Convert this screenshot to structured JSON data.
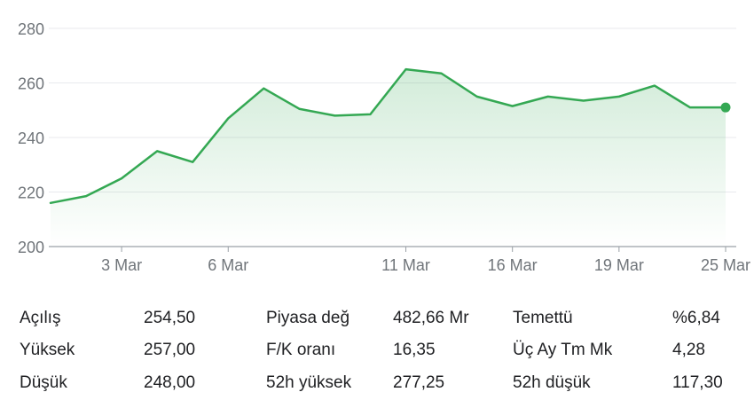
{
  "chart_data": {
    "type": "line",
    "x": [
      "1 Mar",
      "2 Mar",
      "3 Mar",
      "4 Mar",
      "5 Mar",
      "6 Mar",
      "7 Mar",
      "8 Mar",
      "9 Mar",
      "10 Mar",
      "11 Mar",
      "13 Mar",
      "14 Mar",
      "16 Mar",
      "17 Mar",
      "18 Mar",
      "19 Mar",
      "20 Mar",
      "23 Mar",
      "25 Mar"
    ],
    "values": [
      216.0,
      218.5,
      225.0,
      235.0,
      231.0,
      247.0,
      258.0,
      250.5,
      248.0,
      248.5,
      265.0,
      263.5,
      255.0,
      251.5,
      255.0,
      253.5,
      255.0,
      259.0,
      251.0,
      251.0
    ],
    "x_ticks": [
      "3 Mar",
      "6 Mar",
      "11 Mar",
      "16 Mar",
      "19 Mar",
      "25 Mar"
    ],
    "y_ticks": [
      "200",
      "220",
      "240",
      "260",
      "280"
    ],
    "ylim": [
      200,
      280
    ],
    "grid": true,
    "line_color": "#34a853",
    "area_color": "#34a853",
    "grid_color": "#e8eaed",
    "axis_color": "#9aa0a6",
    "tick_text_color": "#70757a"
  },
  "stats": [
    {
      "label": "Açılış",
      "value": "254,50"
    },
    {
      "label": "Yüksek",
      "value": "257,00"
    },
    {
      "label": "Düşük",
      "value": "248,00"
    },
    {
      "label": "Piyasa değ",
      "value": "482,66 Mr"
    },
    {
      "label": "F/K oranı",
      "value": "16,35"
    },
    {
      "label": "52h yüksek",
      "value": "277,25"
    },
    {
      "label": "Temettü",
      "value": "%6,84"
    },
    {
      "label": "Üç Ay Tm Mk",
      "value": "4,28"
    },
    {
      "label": "52h düşük",
      "value": "117,30"
    }
  ]
}
